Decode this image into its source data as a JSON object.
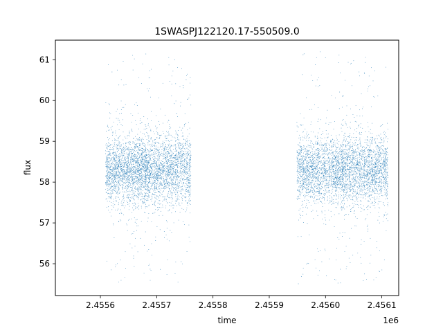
{
  "chart_data": {
    "type": "scatter",
    "title": "1SWASPJ122120.17-550509.0",
    "xlabel": "time",
    "ylabel": "flux",
    "x_offset_label": "1e6",
    "xlim": [
      2.45552,
      2.45613
    ],
    "ylim": [
      55.22,
      61.48
    ],
    "x_ticks": [
      2.4556,
      2.4557,
      2.4558,
      2.4559,
      2.456,
      2.4561
    ],
    "x_tick_labels": [
      "2.4556",
      "2.4557",
      "2.4558",
      "2.4559",
      "2.4560",
      "2.4561"
    ],
    "y_ticks": [
      56,
      57,
      58,
      59,
      60,
      61
    ],
    "y_tick_labels": [
      "56",
      "57",
      "58",
      "59",
      "60",
      "61"
    ],
    "grid": false,
    "legend": "none",
    "marker_color": "#1f77b4",
    "series": [
      {
        "values_summary": "dense light curve: many small points",
        "x_clusters": [
          [
            2.45561,
            2.45568
          ],
          [
            2.45568,
            2.45576
          ],
          [
            2.45595,
            2.45603
          ],
          [
            2.45603,
            2.45611
          ]
        ],
        "y_center": 58.3,
        "y_core_spread": [
          57.4,
          59.2
        ],
        "y_outlier_range": [
          55.5,
          61.2
        ]
      }
    ]
  }
}
